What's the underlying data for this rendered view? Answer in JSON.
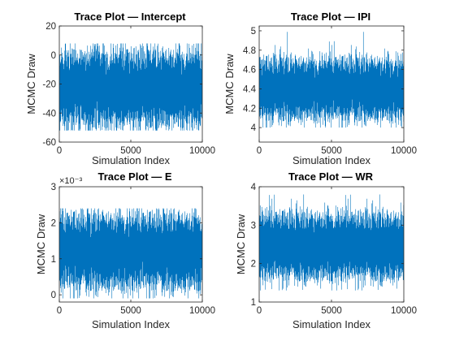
{
  "chart_data": [
    {
      "type": "line",
      "title": "Trace Plot — Intercept",
      "xlabel": "Simulation Index",
      "ylabel": "MCMC Draw",
      "xlim": [
        0,
        10000
      ],
      "ylim": [
        -60,
        20
      ],
      "xticks": [
        "0",
        "5000",
        "10000"
      ],
      "yticks": [
        "-60",
        "-40",
        "-20",
        "0",
        "20"
      ],
      "ytick_values": [
        -60,
        -40,
        -20,
        0,
        20
      ],
      "exponent_label": "",
      "n_draws": 10000,
      "series_mean": -23,
      "series_band": [
        -45,
        0
      ],
      "series_extremes": [
        -52,
        8
      ],
      "color": "#0072BD"
    },
    {
      "type": "line",
      "title": "Trace Plot — IPI",
      "xlabel": "Simulation Index",
      "ylabel": "MCMC Draw",
      "xlim": [
        0,
        10000
      ],
      "ylim": [
        3.85,
        5.05
      ],
      "xticks": [
        "0",
        "5000",
        "10000"
      ],
      "yticks": [
        "4",
        "4.2",
        "4.4",
        "4.6",
        "4.8",
        "5"
      ],
      "ytick_values": [
        4,
        4.2,
        4.4,
        4.6,
        4.8,
        5
      ],
      "exponent_label": "",
      "n_draws": 10000,
      "series_mean": 4.4,
      "series_band": [
        4.15,
        4.7
      ],
      "series_extremes": [
        4.0,
        5.05
      ],
      "color": "#0072BD"
    },
    {
      "type": "line",
      "title": "Trace Plot — E",
      "xlabel": "Simulation Index",
      "ylabel": "MCMC Draw",
      "xlim": [
        0,
        10000
      ],
      "ylim": [
        -0.0002,
        0.003
      ],
      "xticks": [
        "0",
        "5000",
        "10000"
      ],
      "yticks": [
        "0",
        "1",
        "2",
        "3"
      ],
      "ytick_values": [
        0,
        0.001,
        0.002,
        0.003
      ],
      "exponent_label": "×10⁻³",
      "n_draws": 10000,
      "series_mean": 0.0012,
      "series_band": [
        0.0003,
        0.0021
      ],
      "series_extremes": [
        -0.0001,
        0.0024
      ],
      "color": "#0072BD"
    },
    {
      "type": "line",
      "title": "Trace Plot — WR",
      "xlabel": "Simulation Index",
      "ylabel": "MCMC Draw",
      "xlim": [
        0,
        10000
      ],
      "ylim": [
        1,
        4
      ],
      "xticks": [
        "0",
        "5000",
        "10000"
      ],
      "yticks": [
        "1",
        "2",
        "3",
        "4"
      ],
      "ytick_values": [
        1,
        2,
        3,
        4
      ],
      "exponent_label": "",
      "n_draws": 10000,
      "series_mean": 2.45,
      "series_band": [
        1.7,
        3.2
      ],
      "series_extremes": [
        1.3,
        3.8
      ],
      "color": "#0072BD"
    }
  ]
}
